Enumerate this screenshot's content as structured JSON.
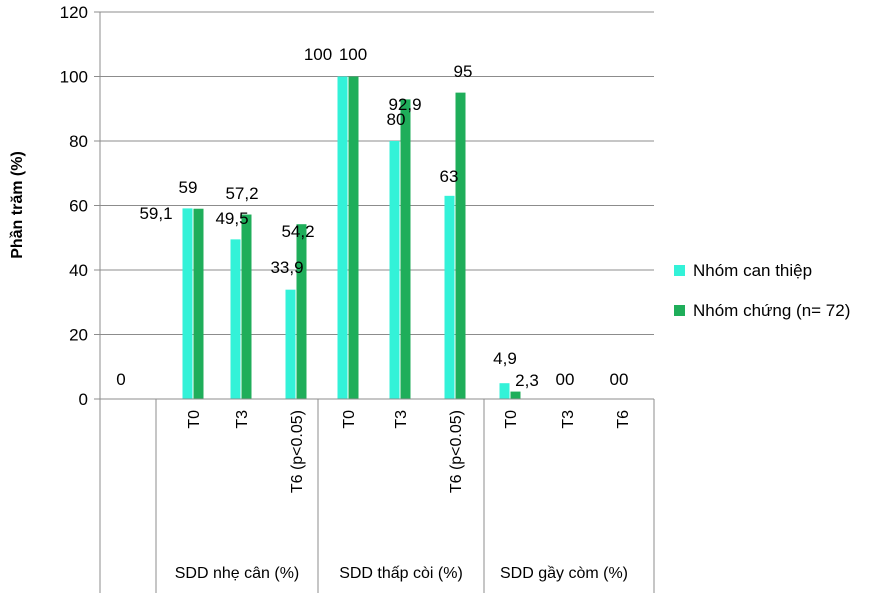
{
  "chart_data": {
    "type": "bar",
    "ylabel": "Phần trăm (%)",
    "ylim": [
      0,
      120
    ],
    "yticks": [
      0,
      20,
      40,
      60,
      80,
      100,
      120
    ],
    "grid": true,
    "legend_position": "right",
    "groups": [
      {
        "label": "",
        "categories": [
          ""
        ]
      },
      {
        "label": "SDD nhẹ cân (%)",
        "categories": [
          "T0",
          "T3",
          "T6 (p<0.05)"
        ]
      },
      {
        "label": "SDD thấp còi (%)",
        "categories": [
          "T0",
          "T3",
          "T6 (p<0.05)"
        ]
      },
      {
        "label": "SDD gầy còm (%)",
        "categories": [
          "T0",
          "T3",
          "T6"
        ]
      }
    ],
    "series": [
      {
        "name": "Nhóm can thiệp",
        "color": "#33f2d8",
        "values": [
          0,
          59.1,
          49.5,
          33.9,
          100,
          80,
          63,
          4.9,
          0,
          0
        ],
        "labels": [
          "0",
          "59,1",
          "49,5",
          "33,9",
          "100",
          "80",
          "63",
          "4,9",
          "0",
          "0"
        ]
      },
      {
        "name": "Nhóm chứng (n= 72)",
        "color": "#1fae5a",
        "values": [
          null,
          59,
          57.2,
          54.2,
          100,
          92.9,
          95,
          2.3,
          0,
          0
        ],
        "labels": [
          "",
          "59",
          "57,2",
          "54,2",
          "100",
          "92,9",
          "95",
          "2,3",
          "0",
          "0"
        ]
      }
    ]
  }
}
